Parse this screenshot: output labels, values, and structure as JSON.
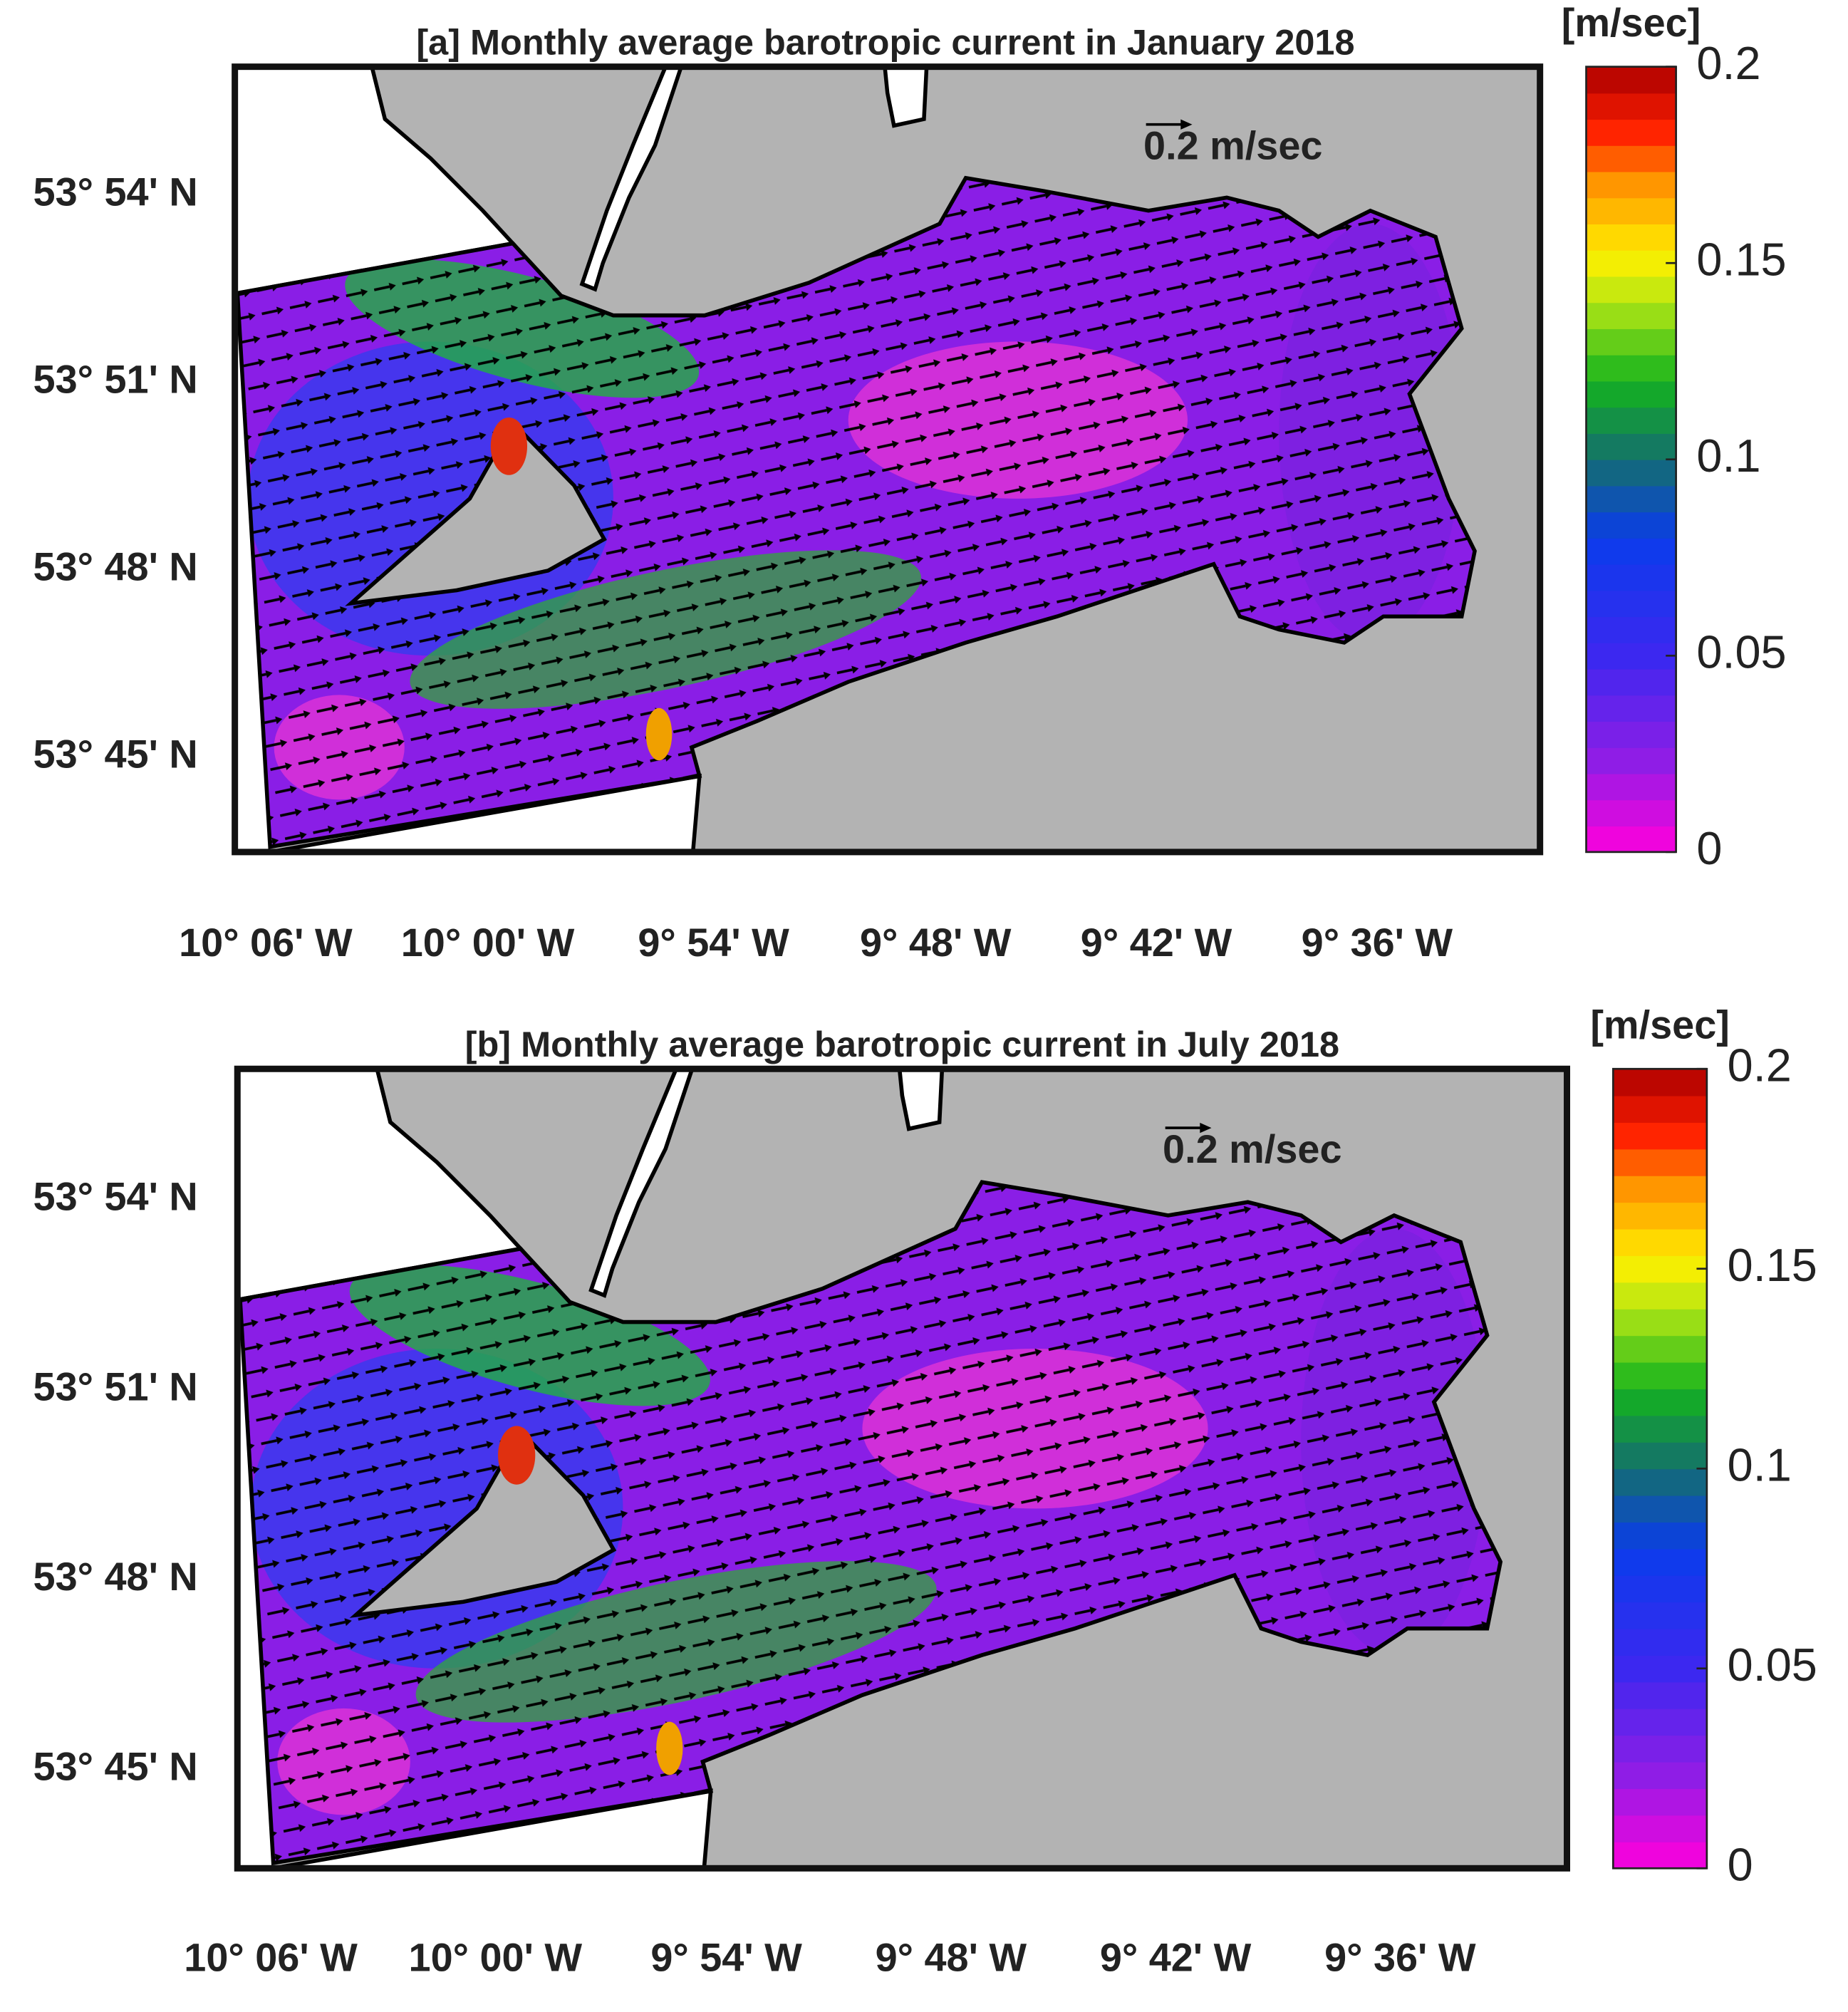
{
  "panels": [
    {
      "title": "[a] Monthly average barotropic current  in January 2018",
      "reference_arrow": "0.2 m/sec",
      "colorbar": {
        "unit": "[m/sec]",
        "lim": [
          0,
          0.2
        ],
        "ticks": [
          0,
          0.05,
          0.1,
          0.15,
          0.2
        ]
      },
      "lat_labels": [
        "53° 54' N",
        "53° 51' N",
        "53° 48' N",
        "53° 45' N"
      ],
      "lon_labels": [
        "10° 06' W",
        "10° 00' W",
        "9° 54' W",
        "9° 48' W",
        "9° 42' W",
        "9° 36' W"
      ]
    },
    {
      "title": "[b] Monthly average barotropic current  in July 2018",
      "reference_arrow": "0.2 m/sec",
      "colorbar": {
        "unit": "[m/sec]",
        "lim": [
          0,
          0.2
        ],
        "ticks": [
          0,
          0.05,
          0.1,
          0.15,
          0.2
        ]
      },
      "lat_labels": [
        "53° 54' N",
        "53° 51' N",
        "53° 48' N",
        "53° 45' N"
      ],
      "lon_labels": [
        "10° 06' W",
        "10° 00' W",
        "9° 54' W",
        "9° 48' W",
        "9° 42' W",
        "9° 36' W"
      ]
    }
  ]
}
